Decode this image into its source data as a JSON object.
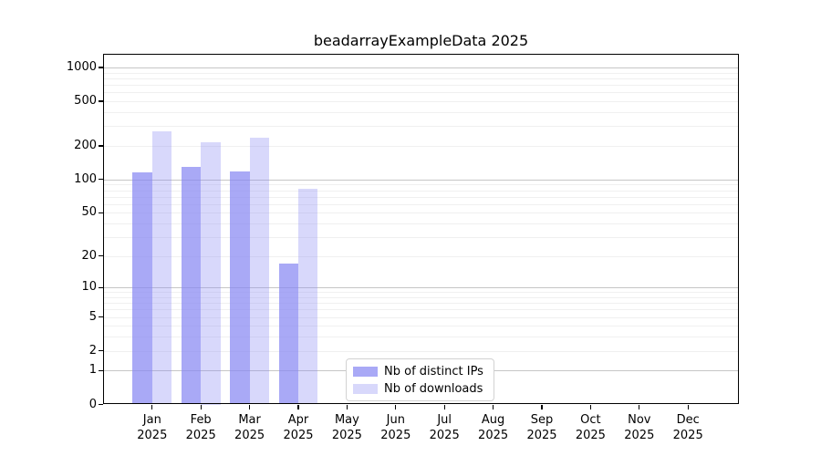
{
  "chart_data": {
    "type": "bar",
    "title": "beadarrayExampleData 2025",
    "scale": "log1p",
    "xlabel": "",
    "ylabel": "",
    "categories": [
      "Jan",
      "Feb",
      "Mar",
      "Apr",
      "May",
      "Jun",
      "Jul",
      "Aug",
      "Sep",
      "Oct",
      "Nov",
      "Dec"
    ],
    "year_label": "2025",
    "series": [
      {
        "name": "Nb of distinct IPs",
        "color": "#a9a9f5",
        "fill": "rgba(136,136,243,0.72)",
        "values": [
          115,
          130,
          118,
          17,
          0,
          0,
          0,
          0,
          0,
          0,
          0,
          0
        ]
      },
      {
        "name": "Nb of downloads",
        "color": "#d8d8f8",
        "fill": "rgba(136,136,243,0.33)",
        "values": [
          270,
          215,
          235,
          82,
          0,
          0,
          0,
          0,
          0,
          0,
          0,
          0
        ]
      }
    ],
    "y_ticks": [
      0,
      1,
      2,
      5,
      10,
      20,
      50,
      100,
      200,
      500,
      1000
    ],
    "ylim": [
      0,
      1320
    ],
    "grid": true,
    "legend_position": "lower center-left inside plot",
    "colors": {
      "grid_major": "#c6c6c6",
      "grid_minor": "#f0f0f0",
      "axis": "#000000",
      "background": "#ffffff",
      "legend_border": "#d2d2d2"
    }
  }
}
